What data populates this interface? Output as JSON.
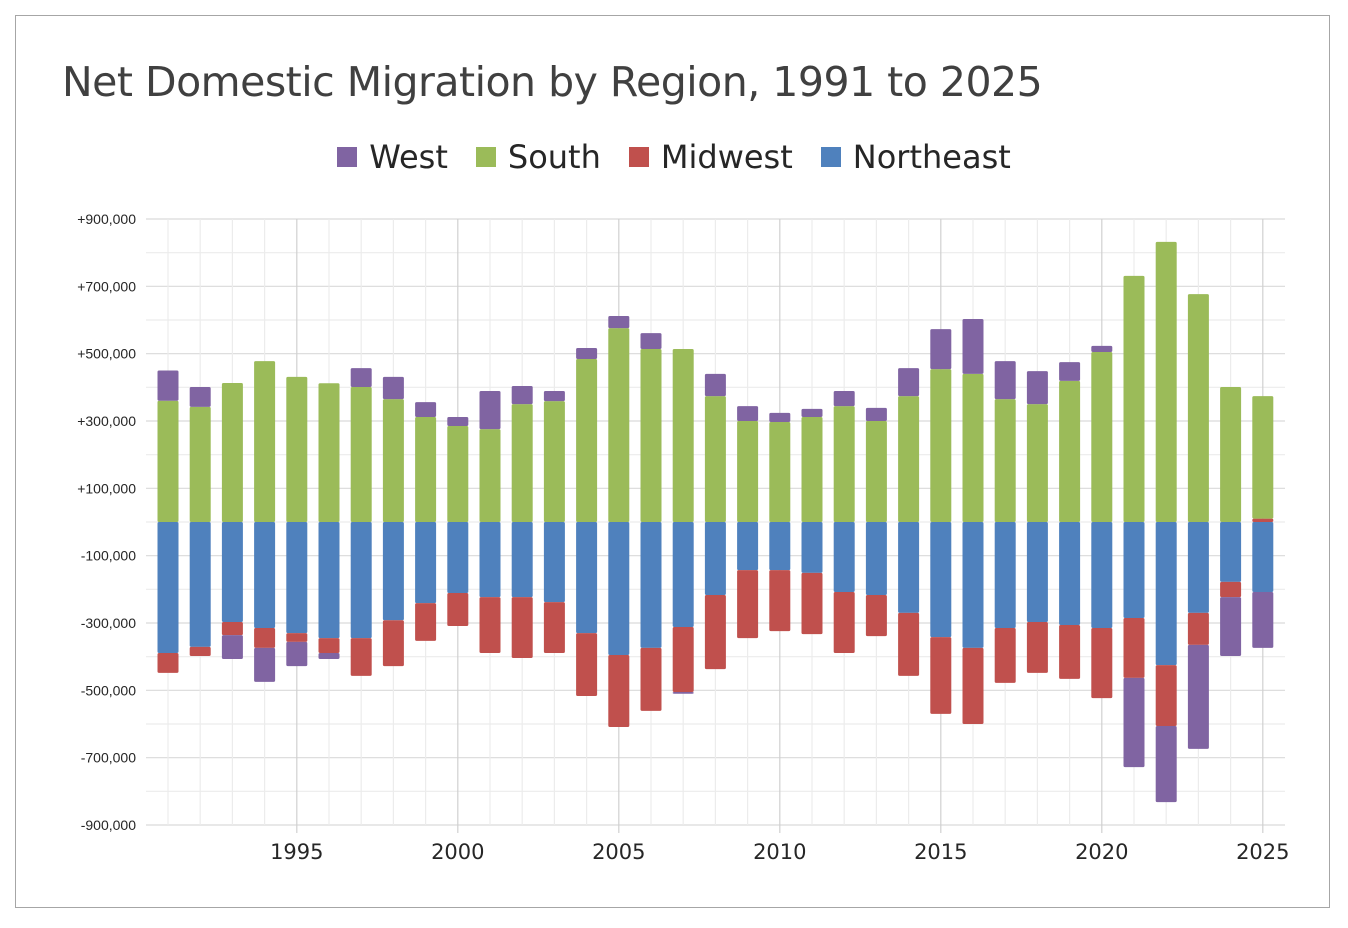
{
  "chart_data": {
    "type": "bar",
    "stacked": true,
    "title": "Net Domestic Migration by Region, 1991 to 2025",
    "xlabel": "",
    "ylabel": "",
    "ylim": [
      -900000,
      900000
    ],
    "y_ticks": [
      900000,
      700000,
      500000,
      300000,
      100000,
      -100000,
      -300000,
      -500000,
      -700000,
      -900000
    ],
    "y_tick_labels": [
      "+900,000",
      "+700,000",
      "+500,000",
      "+300,000",
      "+100,000",
      "-100,000",
      "-300,000",
      "-500,000",
      "-700,000",
      "-900,000"
    ],
    "x_tick_labels": [
      "1995",
      "2000",
      "2005",
      "2010",
      "2015",
      "2020",
      "2025"
    ],
    "grid": true,
    "legend_position": "top",
    "categories": [
      1991,
      1992,
      1993,
      1994,
      1995,
      1996,
      1997,
      1998,
      1999,
      2000,
      2001,
      2002,
      2003,
      2004,
      2005,
      2006,
      2007,
      2008,
      2009,
      2010,
      2011,
      2012,
      2013,
      2014,
      2015,
      2016,
      2017,
      2018,
      2019,
      2020,
      2021,
      2022,
      2023,
      2024,
      2025
    ],
    "series": [
      {
        "name": "West",
        "color": "#8064A2",
        "values": [
          90000,
          59000,
          -71000,
          -101000,
          -72000,
          -18000,
          56000,
          66000,
          44000,
          27000,
          113000,
          54000,
          30000,
          33000,
          36000,
          47000,
          -5000,
          66000,
          44000,
          27000,
          24000,
          45000,
          39000,
          83000,
          119000,
          163000,
          113000,
          98000,
          56000,
          18000,
          -265000,
          -226000,
          -309000,
          -175000,
          -166000
        ]
      },
      {
        "name": "South",
        "color": "#9BBB59",
        "values": [
          360000,
          342000,
          413000,
          478000,
          431000,
          412000,
          401000,
          365000,
          312000,
          285000,
          276000,
          350000,
          359000,
          484000,
          576000,
          514000,
          514000,
          374000,
          300000,
          297000,
          312000,
          344000,
          300000,
          374000,
          454000,
          440000,
          365000,
          350000,
          419000,
          505000,
          731000,
          832000,
          677000,
          401000,
          364000
        ]
      },
      {
        "name": "Midwest",
        "color": "#C0504D",
        "values": [
          -59000,
          -27000,
          -39000,
          -59000,
          -26000,
          -44000,
          -112000,
          -136000,
          -112000,
          -98000,
          -166000,
          -181000,
          -151000,
          -187000,
          -214000,
          -187000,
          -193000,
          -220000,
          -202000,
          -181000,
          -182000,
          -181000,
          -122000,
          -187000,
          -228000,
          -226000,
          -163000,
          -151000,
          -160000,
          -208000,
          -178000,
          -181000,
          -95000,
          -45000,
          10000
        ]
      },
      {
        "name": "Northeast",
        "color": "#4F81BD",
        "values": [
          -389000,
          -371000,
          -297000,
          -315000,
          -330000,
          -345000,
          -345000,
          -292000,
          -241000,
          -211000,
          -223000,
          -223000,
          -238000,
          -330000,
          -395000,
          -374000,
          -312000,
          -217000,
          -143000,
          -143000,
          -151000,
          -208000,
          -217000,
          -270000,
          -342000,
          -374000,
          -315000,
          -297000,
          -306000,
          -315000,
          -285000,
          -425000,
          -270000,
          -178000,
          -208000
        ]
      }
    ]
  }
}
